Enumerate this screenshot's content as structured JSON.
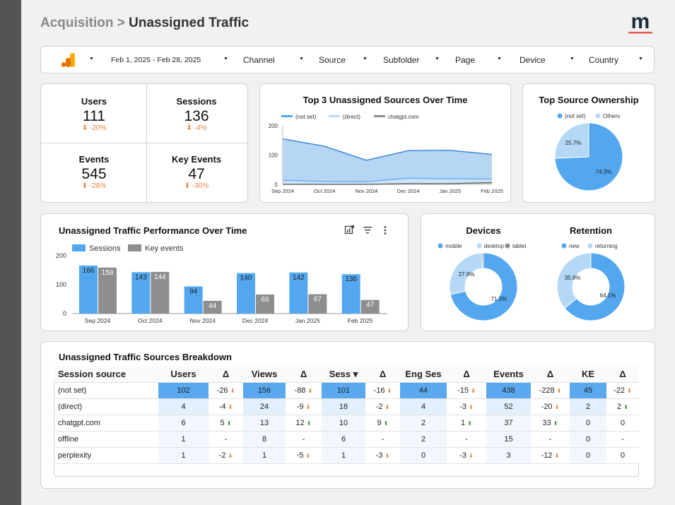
{
  "header": {
    "crumb": "Acquisition",
    "sep": ">",
    "title": "Unassigned Traffic",
    "logo_letter": "m"
  },
  "filters": {
    "date": "Feb 1, 2025 - Feb 28, 2025",
    "channel": "Channel",
    "source": "Source",
    "subfolder": "Subfolder",
    "page": "Page",
    "device": "Device",
    "country": "Country"
  },
  "kpis": [
    {
      "label": "Users",
      "value": "111",
      "delta": "⬇ -20%"
    },
    {
      "label": "Sessions",
      "value": "136",
      "delta": "⬇ -4%"
    },
    {
      "label": "Events",
      "value": "545",
      "delta": "⬇ -28%"
    },
    {
      "label": "Key Events",
      "value": "47",
      "delta": "⬇ -30%"
    }
  ],
  "colors": {
    "primary": "#53a7ee",
    "light": "#b5d8f7",
    "grey": "#8e8e8e",
    "orange": "#e8833a",
    "green": "#2e8b3e"
  },
  "line_chart": {
    "title": "Top 3 Unassigned Sources Over Time",
    "chart_data": {
      "type": "area",
      "categories": [
        "Sep 2024",
        "Oct 2024",
        "Nov 2024",
        "Dec 2024",
        "Jan 2025",
        "Feb 2025"
      ],
      "series": [
        {
          "name": "(not set)",
          "values": [
            155,
            130,
            82,
            115,
            116,
            102
          ]
        },
        {
          "name": "(direct)",
          "values": [
            14,
            10,
            9,
            21,
            19,
            18
          ]
        },
        {
          "name": "chatgpt.com",
          "values": [
            0,
            0,
            0,
            2,
            2,
            6
          ]
        }
      ],
      "yticks": [
        "200",
        "100",
        "0"
      ],
      "ylim": [
        0,
        200
      ]
    }
  },
  "ownership": {
    "title": "Top Source Ownership",
    "chart_data": {
      "type": "pie",
      "labels": [
        "(not set)",
        "Others"
      ],
      "values": [
        74.3,
        25.7
      ],
      "value_labels": [
        "74.3%",
        "25.7%"
      ]
    }
  },
  "bar_chart": {
    "title": "Unassigned Traffic Performance Over Time",
    "chart_data": {
      "type": "bar",
      "categories": [
        "Sep 2024",
        "Oct 2024",
        "Nov 2024",
        "Dec 2024",
        "Jan 2025",
        "Feb 2025"
      ],
      "series": [
        {
          "name": "Sessions",
          "values": [
            166,
            143,
            94,
            140,
            142,
            136
          ]
        },
        {
          "name": "Key events",
          "values": [
            159,
            144,
            44,
            66,
            67,
            47
          ]
        }
      ],
      "yticks": [
        "200",
        "100",
        "0"
      ],
      "ylim": [
        0,
        200
      ]
    }
  },
  "devices": {
    "title": "Devices",
    "chart_data": {
      "type": "pie",
      "labels": [
        "mobile",
        "desktop",
        "tablet"
      ],
      "values": [
        71.3,
        27.9,
        0.8
      ],
      "value_labels": [
        "71.3%",
        "27.9%",
        ""
      ]
    }
  },
  "retention": {
    "title": "Retention",
    "chart_data": {
      "type": "pie",
      "labels": [
        "new",
        "returning"
      ],
      "values": [
        64.1,
        35.9
      ],
      "value_labels": [
        "64.1%",
        "35.9%"
      ]
    }
  },
  "breakdown": {
    "title": "Unassigned Traffic Sources Breakdown",
    "columns": [
      "Session source",
      "Users",
      "Δ",
      "Views",
      "Δ",
      "Sess ▾",
      "Δ",
      "Eng Ses",
      "Δ",
      "Events",
      "Δ",
      "KE",
      "Δ"
    ],
    "rows": [
      {
        "source": "(not set)",
        "users": "102",
        "d_users": "-26 ⬇",
        "views": "156",
        "d_views": "-88 ⬇",
        "sess": "101",
        "d_sess": "-16 ⬇",
        "eng": "44",
        "d_eng": "-15 ⬇",
        "events": "438",
        "d_events": "-228 ⬇",
        "ke": "45",
        "d_ke": "-22 ⬇"
      },
      {
        "source": "(direct)",
        "users": "4",
        "d_users": "-4 ⬇",
        "views": "24",
        "d_views": "-9 ⬇",
        "sess": "18",
        "d_sess": "-2 ⬇",
        "eng": "4",
        "d_eng": "-3 ⬇",
        "events": "52",
        "d_events": "-20 ⬇",
        "ke": "2",
        "d_ke": "2 ⬆"
      },
      {
        "source": "chatgpt.com",
        "users": "6",
        "d_users": "5 ⬆",
        "views": "13",
        "d_views": "12 ⬆",
        "sess": "10",
        "d_sess": "9 ⬆",
        "eng": "2",
        "d_eng": "1 ⬆",
        "events": "37",
        "d_events": "33 ⬆",
        "ke": "0",
        "d_ke": "0"
      },
      {
        "source": "offline",
        "users": "1",
        "d_users": "-",
        "views": "8",
        "d_views": "-",
        "sess": "6",
        "d_sess": "-",
        "eng": "2",
        "d_eng": "-",
        "events": "15",
        "d_events": "-",
        "ke": "0",
        "d_ke": "-"
      },
      {
        "source": "perplexity",
        "users": "1",
        "d_users": "-2 ⬇",
        "views": "1",
        "d_views": "-5 ⬇",
        "sess": "1",
        "d_sess": "-3 ⬇",
        "eng": "0",
        "d_eng": "-3 ⬇",
        "events": "3",
        "d_events": "-12 ⬇",
        "ke": "0",
        "d_ke": "0"
      }
    ]
  }
}
